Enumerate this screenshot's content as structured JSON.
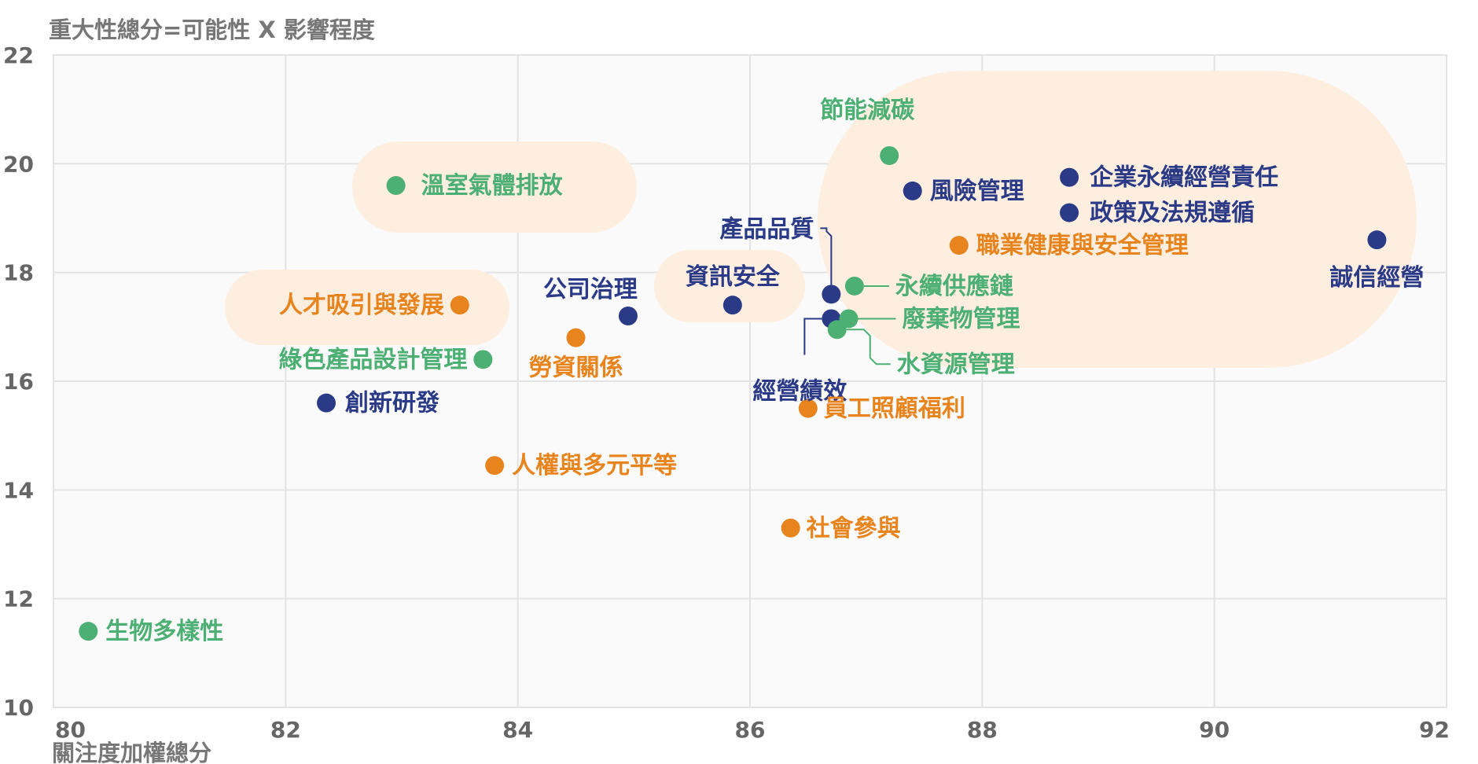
{
  "chart_data": {
    "type": "scatter",
    "title": "",
    "ylabel": "重大性總分=可能性 X 影響程度",
    "xlabel": "關注度加權總分",
    "xlim": [
      80,
      92
    ],
    "ylim": [
      10,
      22
    ],
    "x_ticks": [
      "80",
      "82",
      "84",
      "86",
      "88",
      "90",
      "92"
    ],
    "y_ticks": [
      "10",
      "12",
      "14",
      "16",
      "18",
      "20",
      "22"
    ],
    "grid": true,
    "colors": {
      "green": "#4caf73",
      "navy": "#2b3a86",
      "orange": "#e8841e",
      "highlight": "#fdeee0"
    },
    "points": [
      {
        "label": "生物多樣性",
        "x": 80.3,
        "y": 11.4,
        "color": "green"
      },
      {
        "label": "溫室氣體排放",
        "x": 82.95,
        "y": 19.6,
        "color": "green"
      },
      {
        "label": "人才吸引與發展",
        "x": 83.5,
        "y": 17.4,
        "color": "orange"
      },
      {
        "label": "綠色產品設計管理",
        "x": 83.7,
        "y": 16.4,
        "color": "green"
      },
      {
        "label": "創新研發",
        "x": 82.35,
        "y": 15.6,
        "color": "navy"
      },
      {
        "label": "人權與多元平等",
        "x": 83.8,
        "y": 14.45,
        "color": "orange"
      },
      {
        "label": "勞資關係",
        "x": 84.5,
        "y": 16.8,
        "color": "orange"
      },
      {
        "label": "公司治理",
        "x": 84.95,
        "y": 17.2,
        "color": "navy"
      },
      {
        "label": "資訊安全",
        "x": 85.85,
        "y": 17.4,
        "color": "navy"
      },
      {
        "label": "產品品質",
        "x": 86.7,
        "y": 17.6,
        "color": "navy"
      },
      {
        "label": "經營績效",
        "x": 86.7,
        "y": 17.15,
        "color": "navy"
      },
      {
        "label": "永續供應鏈",
        "x": 86.9,
        "y": 17.75,
        "color": "green"
      },
      {
        "label": "廢棄物管理",
        "x": 86.85,
        "y": 17.15,
        "color": "green"
      },
      {
        "label": "水資源管理",
        "x": 86.75,
        "y": 16.95,
        "color": "green"
      },
      {
        "label": "員工照顧福利",
        "x": 86.5,
        "y": 15.5,
        "color": "orange"
      },
      {
        "label": "社會參與",
        "x": 86.35,
        "y": 13.3,
        "color": "orange"
      },
      {
        "label": "節能減碳",
        "x": 87.2,
        "y": 20.15,
        "color": "green"
      },
      {
        "label": "風險管理",
        "x": 87.4,
        "y": 19.5,
        "color": "navy"
      },
      {
        "label": "職業健康與安全管理",
        "x": 87.8,
        "y": 18.5,
        "color": "orange"
      },
      {
        "label": "企業永續經營責任",
        "x": 88.75,
        "y": 19.75,
        "color": "navy"
      },
      {
        "label": "政策及法規遵循",
        "x": 88.75,
        "y": 19.1,
        "color": "navy"
      },
      {
        "label": "誠信經營",
        "x": 91.4,
        "y": 18.6,
        "color": "navy"
      }
    ]
  }
}
